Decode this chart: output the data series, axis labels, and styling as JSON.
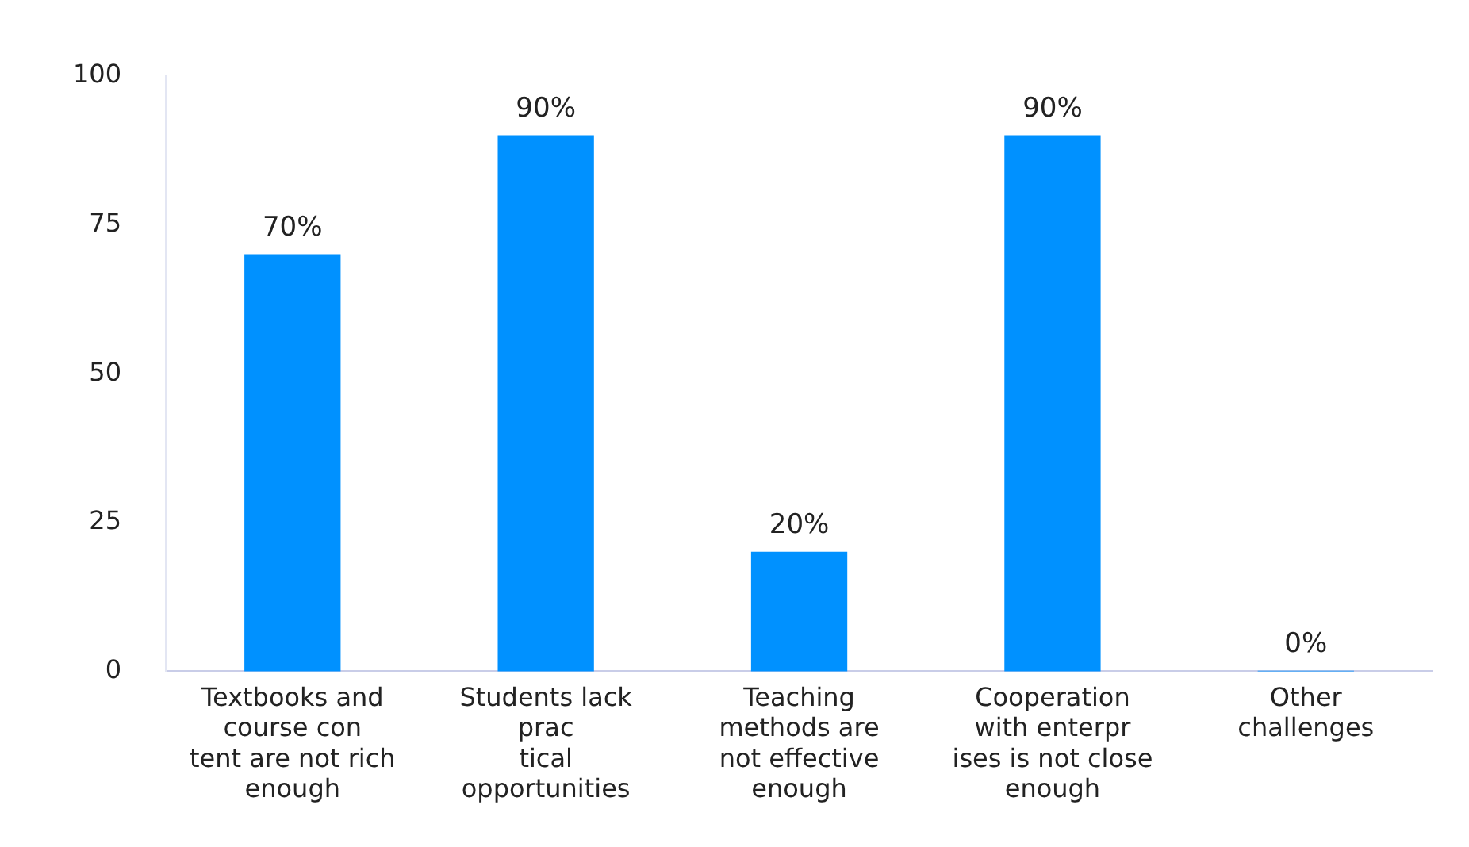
{
  "chart_data": {
    "type": "bar",
    "categories": [
      "Textbooks and\ncourse con\ntent are not rich\nenough",
      "Students lack\nprac\ntical\nopportunities",
      "Teaching\nmethods are\nnot effective\nenough",
      "Cooperation\nwith enterpr\nises is not close\nenough",
      "Other\nchallenges"
    ],
    "values": [
      70,
      90,
      20,
      90,
      0
    ],
    "value_labels": [
      "70%",
      "90%",
      "20%",
      "90%",
      "0%"
    ],
    "color": "#0091ff",
    "ylim": [
      0,
      100
    ],
    "yticks": [
      0,
      25,
      50,
      75,
      100
    ],
    "grid": false,
    "legend": false
  }
}
